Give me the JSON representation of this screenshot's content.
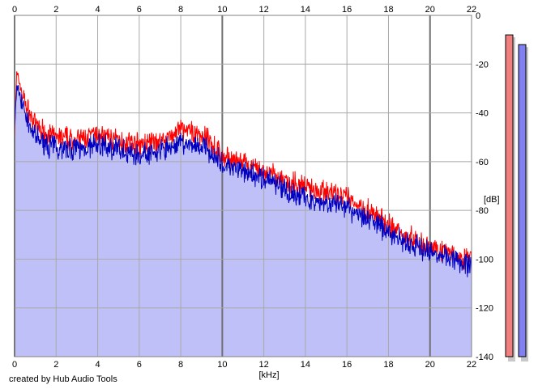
{
  "credit": "created by Hub Audio Tools",
  "chart_data": {
    "type": "line",
    "xlabel": "[kHz]",
    "ylabel": "[dB]",
    "xlim": [
      0,
      22
    ],
    "ylim": [
      -140,
      0
    ],
    "x_ticks": [
      "0",
      "2",
      "4",
      "6",
      "8",
      "10",
      "12",
      "14",
      "16",
      "18",
      "20",
      "22"
    ],
    "y_ticks": [
      "0",
      "-20",
      "-40",
      "-60",
      "-80",
      "-100",
      "-120",
      "-140"
    ],
    "grid": true,
    "x_major_ticks": [
      0,
      10,
      20
    ],
    "series": [
      {
        "color": "#ff0000",
        "x": [
          0,
          0.1,
          0.2,
          0.3,
          0.4,
          0.5,
          0.6,
          0.8,
          1,
          1.5,
          2,
          3,
          4,
          5,
          6,
          7,
          8,
          9,
          9.5,
          10,
          11,
          12,
          13,
          14,
          15,
          16,
          17,
          18,
          19,
          20,
          21,
          22
        ],
        "y": [
          -50,
          -24,
          -26,
          -30,
          -33,
          -35,
          -38,
          -42,
          -45,
          -48,
          -50,
          -51,
          -49,
          -51,
          -53,
          -52,
          -47,
          -49,
          -52,
          -58,
          -61,
          -64,
          -68,
          -70,
          -72,
          -75,
          -80,
          -86,
          -91,
          -95,
          -97,
          -101
        ]
      },
      {
        "color": "#0000c0",
        "x": [
          0,
          0.1,
          0.2,
          0.3,
          0.4,
          0.5,
          0.6,
          0.8,
          1,
          1.5,
          2,
          3,
          4,
          5,
          6,
          7,
          8,
          9,
          9.5,
          10,
          11,
          12,
          13,
          14,
          15,
          16,
          17,
          18,
          19,
          20,
          21,
          22
        ],
        "y": [
          -48,
          -29,
          -31,
          -34,
          -37,
          -40,
          -43,
          -47,
          -50,
          -53,
          -54,
          -55,
          -53,
          -55,
          -57,
          -56,
          -52,
          -54,
          -56,
          -61,
          -64,
          -67,
          -71,
          -75,
          -77,
          -79,
          -83,
          -89,
          -94,
          -97,
          -99,
          -103
        ]
      }
    ],
    "level_meters": [
      {
        "color": "#f08080",
        "value_db": -8
      },
      {
        "color": "#8080f0",
        "value_db": -12
      }
    ]
  }
}
